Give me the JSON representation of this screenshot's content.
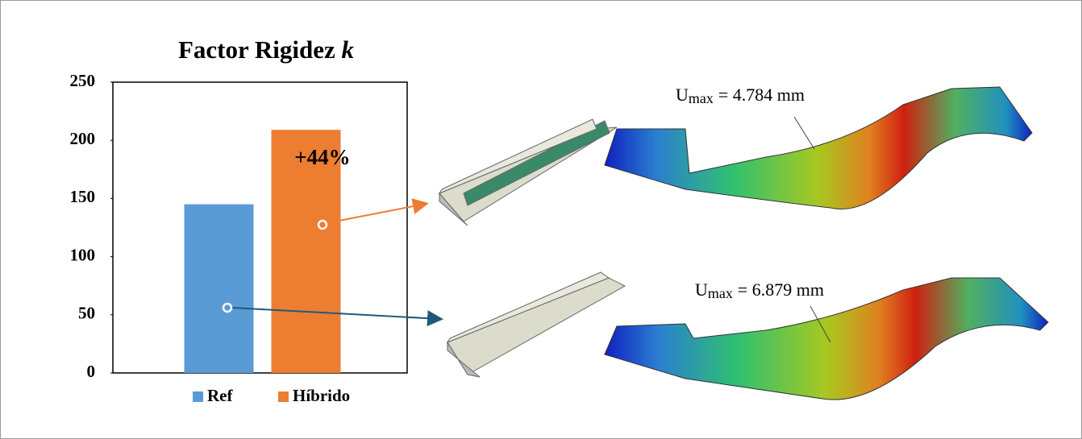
{
  "chart_data": {
    "type": "bar",
    "title": "Factor Rigidez",
    "title_variable": "k",
    "categories": [
      null
    ],
    "series": [
      {
        "name": "Ref",
        "color": "#5b9bd5",
        "values": [
          145
        ]
      },
      {
        "name": "Híbrido",
        "color": "#ed7d31",
        "values": [
          209
        ]
      }
    ],
    "ylim": [
      0,
      250
    ],
    "yticks": [
      0,
      50,
      100,
      150,
      200,
      250
    ],
    "grid": false,
    "legend": "bottom",
    "annotations": [
      {
        "text": "+44%"
      },
      {
        "symbol": "U",
        "subscript": "max",
        "text": "= 4.784 mm"
      },
      {
        "symbol": "U",
        "subscript": "max",
        "text": "= 6.879 mm"
      }
    ]
  }
}
